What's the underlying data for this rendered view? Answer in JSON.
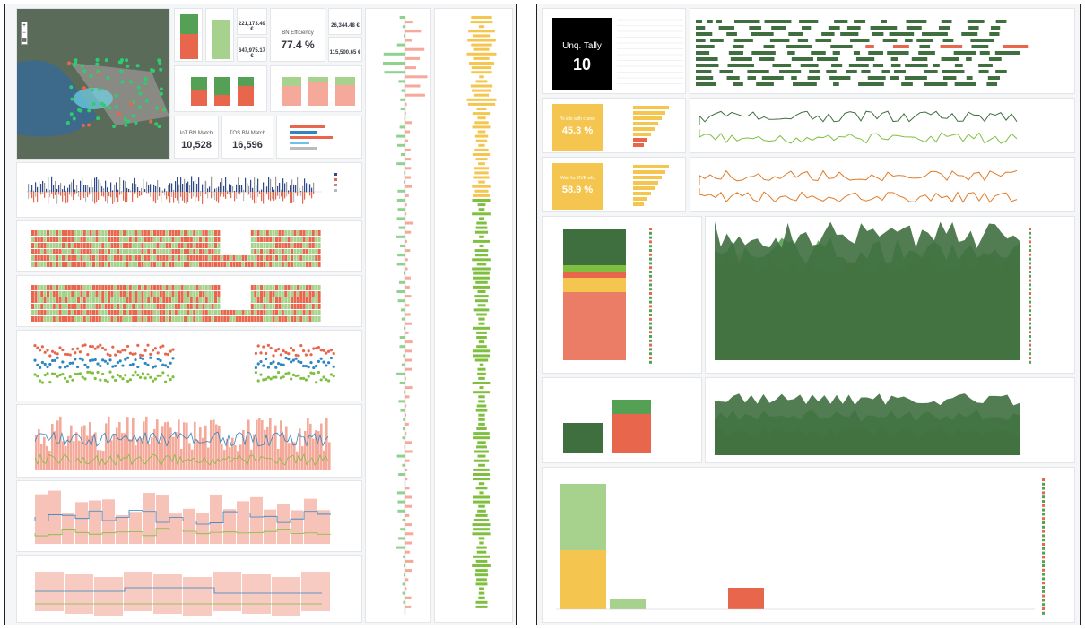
{
  "colors": {
    "green": "#54a054",
    "lightgreen": "#a7d28d",
    "red": "#e7664c",
    "salmon": "#f4a99a",
    "yellow": "#f5c64f",
    "darkgreen": "#3f6e3f",
    "blue": "#2e86c1",
    "orange": "#e07b28",
    "black": "#000000"
  },
  "left": {
    "metrics": {
      "value1": "221,173.49 €",
      "value2": "647,975.17 €",
      "efficiency_label": "BN Efficiency",
      "efficiency_value": "77.4 %",
      "value3": "26,344.48 €",
      "value4": "115,500.65 €",
      "iot_label": "IoT BN Match",
      "iot_value": "10,528",
      "tos_label": "TOS BN Match",
      "tos_value": "16,596"
    },
    "map": {
      "icon": "map-layer-icon"
    }
  },
  "right": {
    "unq_tally": {
      "label": "Unq. Tally",
      "value": "10"
    },
    "kpi1": {
      "text": "% idle with crane",
      "value": "45.3 %"
    },
    "kpi2": {
      "text": "Wait for OVE wfc",
      "value": "58.9 %"
    }
  }
}
